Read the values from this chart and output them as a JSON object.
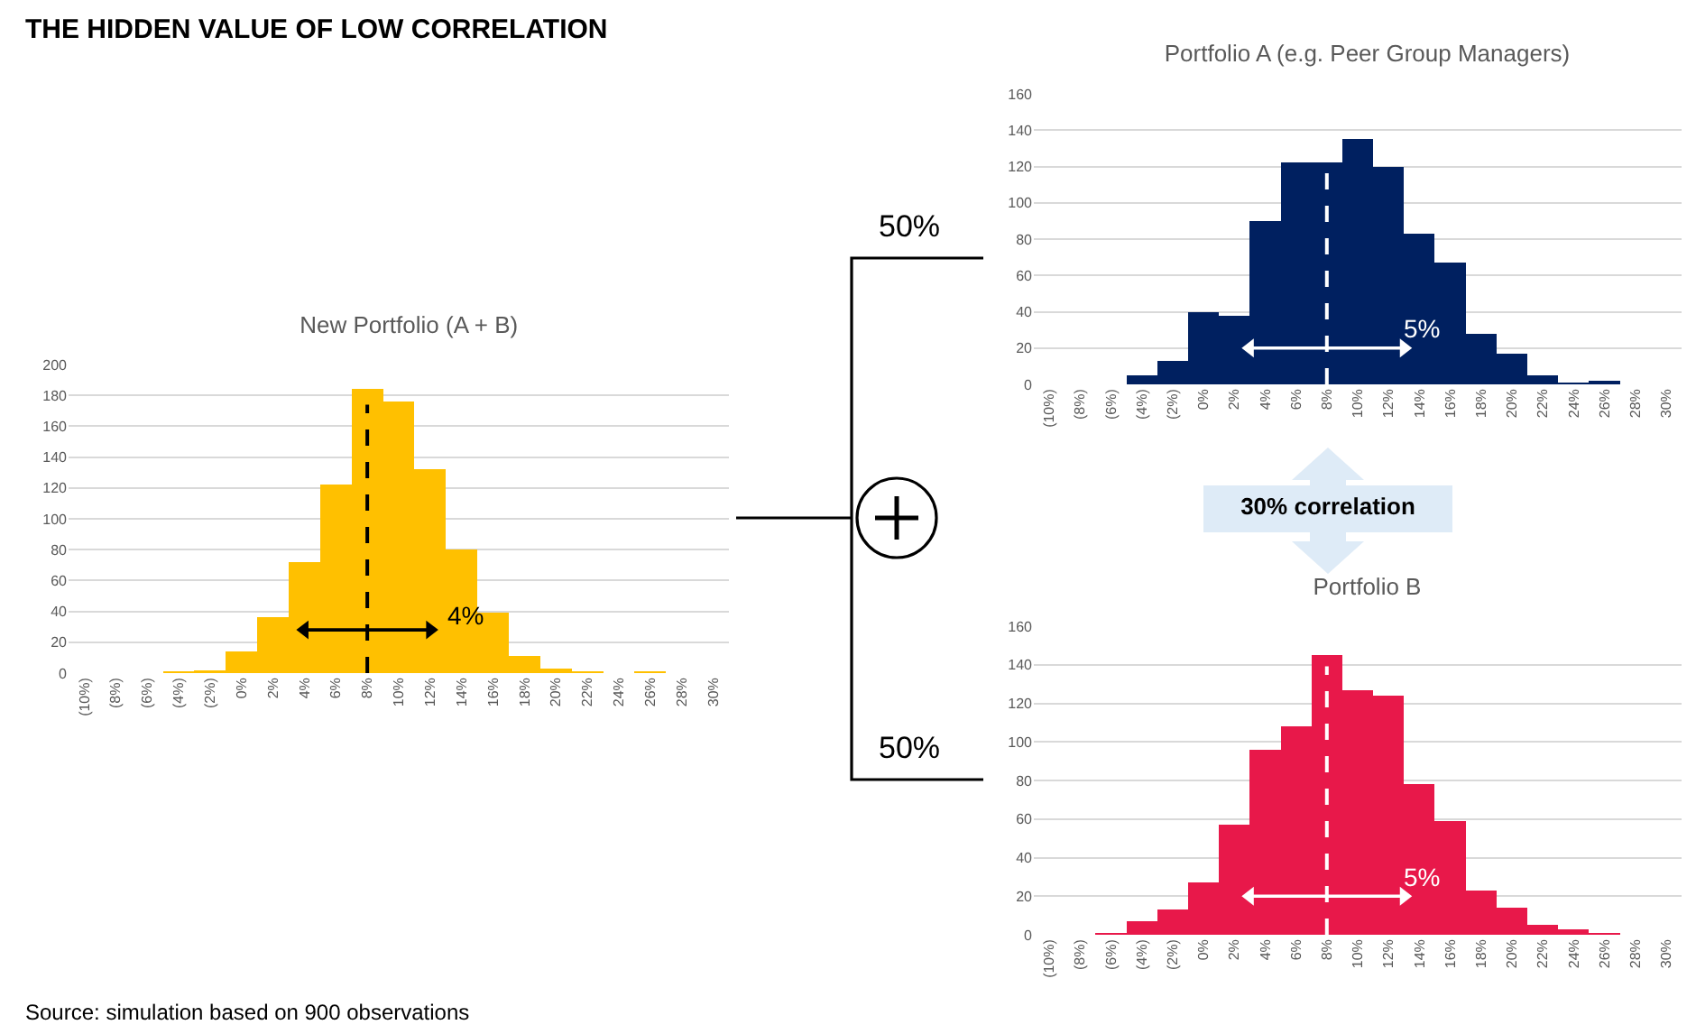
{
  "chart_data": [
    {
      "type": "bar",
      "title": "New Portfolio (A + B)",
      "x": [
        -10,
        -8,
        -6,
        -4,
        -2,
        0,
        2,
        4,
        6,
        8,
        10,
        12,
        14,
        16,
        18,
        20,
        22,
        24,
        26,
        28,
        30
      ],
      "xlim": [
        -11,
        31
      ],
      "xticks": [
        {
          "value": -10,
          "label": "(10%)"
        },
        {
          "value": -8,
          "label": "(8%)"
        },
        {
          "value": -6,
          "label": "(6%)"
        },
        {
          "value": -4,
          "label": "(4%)"
        },
        {
          "value": -2,
          "label": "(2%)"
        },
        {
          "value": 0,
          "label": "0%"
        },
        {
          "value": 2,
          "label": "2%"
        },
        {
          "value": 4,
          "label": "4%"
        },
        {
          "value": 6,
          "label": "6%"
        },
        {
          "value": 8,
          "label": "8%"
        },
        {
          "value": 10,
          "label": "10%"
        },
        {
          "value": 12,
          "label": "12%"
        },
        {
          "value": 14,
          "label": "14%"
        },
        {
          "value": 16,
          "label": "16%"
        },
        {
          "value": 18,
          "label": "18%"
        },
        {
          "value": 20,
          "label": "20%"
        },
        {
          "value": 22,
          "label": "22%"
        },
        {
          "value": 24,
          "label": "24%"
        },
        {
          "value": 26,
          "label": "26%"
        },
        {
          "value": 28,
          "label": "28%"
        },
        {
          "value": 30,
          "label": "30%"
        }
      ],
      "ylim": [
        0,
        200
      ],
      "yticks": [
        0,
        20,
        40,
        60,
        80,
        100,
        120,
        140,
        160,
        180,
        200
      ],
      "grid": "y",
      "series": [
        {
          "type": "bar",
          "color": "#ffc000",
          "values": [
            0,
            0,
            0,
            1,
            2,
            14,
            36,
            72,
            122,
            184,
            176,
            132,
            80,
            39,
            11,
            3,
            1,
            0,
            1,
            0,
            0
          ]
        },
        {
          "type": "line",
          "color": "#000000",
          "marker": "triangle",
          "x": [
            4,
            12
          ],
          "values": [
            28,
            28
          ]
        }
      ],
      "ref_lines": [
        {
          "axis": "x",
          "value": 8,
          "color": "#000000",
          "line_style": "dashed"
        }
      ],
      "annotations": [
        "4%"
      ]
    },
    {
      "type": "bar",
      "title": "Portfolio A (e.g. Peer Group Managers)",
      "x": [
        -10,
        -8,
        -6,
        -4,
        -2,
        0,
        2,
        4,
        6,
        8,
        10,
        12,
        14,
        16,
        18,
        20,
        22,
        24,
        26,
        28,
        30
      ],
      "xlim": [
        -11,
        31
      ],
      "xticks": [
        {
          "value": -10,
          "label": "(10%)"
        },
        {
          "value": -8,
          "label": "(8%)"
        },
        {
          "value": -6,
          "label": "(6%)"
        },
        {
          "value": -4,
          "label": "(4%)"
        },
        {
          "value": -2,
          "label": "(2%)"
        },
        {
          "value": 0,
          "label": "0%"
        },
        {
          "value": 2,
          "label": "2%"
        },
        {
          "value": 4,
          "label": "4%"
        },
        {
          "value": 6,
          "label": "6%"
        },
        {
          "value": 8,
          "label": "8%"
        },
        {
          "value": 10,
          "label": "10%"
        },
        {
          "value": 12,
          "label": "12%"
        },
        {
          "value": 14,
          "label": "14%"
        },
        {
          "value": 16,
          "label": "16%"
        },
        {
          "value": 18,
          "label": "18%"
        },
        {
          "value": 20,
          "label": "20%"
        },
        {
          "value": 22,
          "label": "22%"
        },
        {
          "value": 24,
          "label": "24%"
        },
        {
          "value": 26,
          "label": "26%"
        },
        {
          "value": 28,
          "label": "28%"
        },
        {
          "value": 30,
          "label": "30%"
        }
      ],
      "ylim": [
        0,
        160
      ],
      "yticks": [
        0,
        20,
        40,
        60,
        80,
        100,
        120,
        140,
        160
      ],
      "grid": "y",
      "series": [
        {
          "type": "bar",
          "color": "#002060",
          "values": [
            0,
            0,
            0,
            5,
            13,
            40,
            38,
            90,
            122,
            122,
            135,
            120,
            83,
            67,
            28,
            17,
            5,
            1,
            2,
            0,
            0
          ]
        },
        {
          "type": "line",
          "color": "#ffffff",
          "marker": "triangle",
          "x": [
            3,
            13
          ],
          "values": [
            20,
            20
          ]
        }
      ],
      "ref_lines": [
        {
          "axis": "x",
          "value": 8,
          "color": "#ffffff",
          "line_style": "dashed"
        }
      ],
      "annotations": [
        "5%"
      ]
    },
    {
      "type": "bar",
      "title": "Portfolio B",
      "x": [
        -10,
        -8,
        -6,
        -4,
        -2,
        0,
        2,
        4,
        6,
        8,
        10,
        12,
        14,
        16,
        18,
        20,
        22,
        24,
        26,
        28,
        30
      ],
      "xlim": [
        -11,
        31
      ],
      "xticks": [
        {
          "value": -10,
          "label": "(10%)"
        },
        {
          "value": -8,
          "label": "(8%)"
        },
        {
          "value": -6,
          "label": "(6%)"
        },
        {
          "value": -4,
          "label": "(4%)"
        },
        {
          "value": -2,
          "label": "(2%)"
        },
        {
          "value": 0,
          "label": "0%"
        },
        {
          "value": 2,
          "label": "2%"
        },
        {
          "value": 4,
          "label": "4%"
        },
        {
          "value": 6,
          "label": "6%"
        },
        {
          "value": 8,
          "label": "8%"
        },
        {
          "value": 10,
          "label": "10%"
        },
        {
          "value": 12,
          "label": "12%"
        },
        {
          "value": 14,
          "label": "14%"
        },
        {
          "value": 16,
          "label": "16%"
        },
        {
          "value": 18,
          "label": "18%"
        },
        {
          "value": 20,
          "label": "20%"
        },
        {
          "value": 22,
          "label": "22%"
        },
        {
          "value": 24,
          "label": "24%"
        },
        {
          "value": 26,
          "label": "26%"
        },
        {
          "value": 28,
          "label": "28%"
        },
        {
          "value": 30,
          "label": "30%"
        }
      ],
      "ylim": [
        0,
        160
      ],
      "yticks": [
        0,
        20,
        40,
        60,
        80,
        100,
        120,
        140,
        160
      ],
      "grid": "y",
      "series": [
        {
          "type": "bar",
          "color": "#e8184a",
          "values": [
            0,
            0,
            1,
            7,
            13,
            27,
            57,
            96,
            108,
            145,
            127,
            124,
            78,
            59,
            23,
            14,
            5,
            3,
            1,
            0,
            0
          ]
        },
        {
          "type": "line",
          "color": "#ffffff",
          "marker": "triangle",
          "x": [
            3,
            13
          ],
          "values": [
            20,
            20
          ]
        }
      ],
      "ref_lines": [
        {
          "axis": "x",
          "value": 8,
          "color": "#ffffff",
          "line_style": "dashed"
        }
      ],
      "annotations": [
        "5%"
      ]
    },
    {
      "type": "other",
      "title": "THE HIDDEN VALUE OF LOW CORRELATION",
      "annotations": [
        "50%",
        "50%",
        "30% correlation",
        "Source: simulation based on 900 observations"
      ]
    }
  ]
}
